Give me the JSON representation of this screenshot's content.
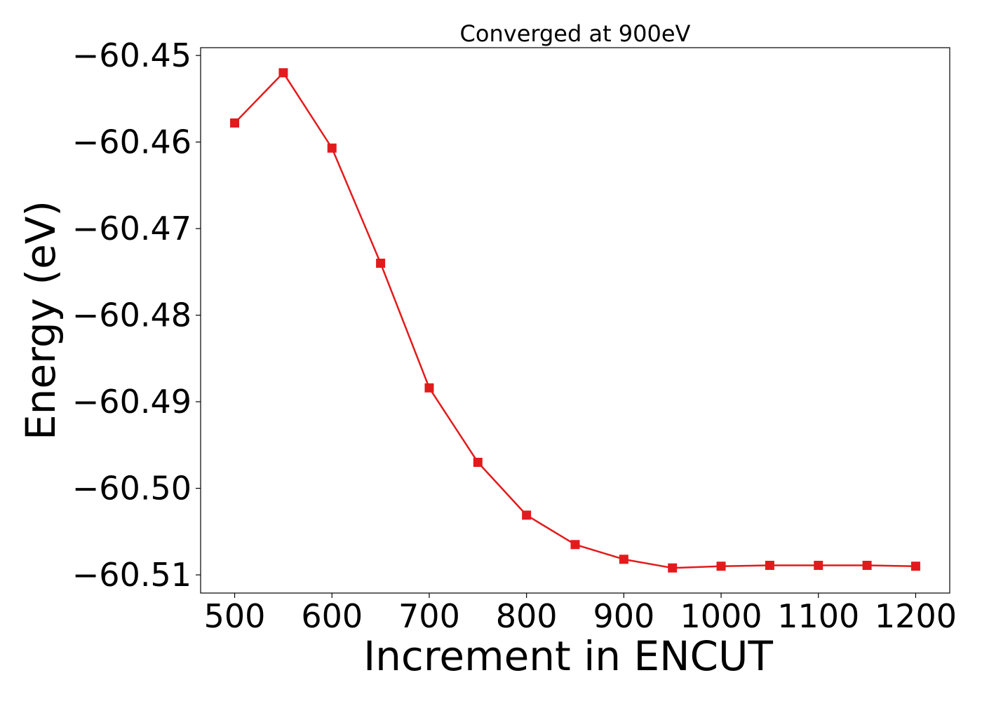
{
  "chart_data": {
    "type": "line",
    "title": "Converged at 900eV",
    "xlabel": "Increment in ENCUT",
    "ylabel": "Energy (eV)",
    "x": [
      500,
      550,
      600,
      650,
      700,
      750,
      800,
      850,
      900,
      950,
      1000,
      1050,
      1100,
      1150,
      1200
    ],
    "series": [
      {
        "values": [
          -60.4578,
          -60.452,
          -60.4607,
          -60.474,
          -60.4884,
          -60.497,
          -60.5031,
          -60.5065,
          -60.5082,
          -60.5092,
          -60.509,
          -60.5089,
          -60.5089,
          -60.5089,
          -60.509
        ],
        "color": "#e31a1c",
        "marker": "square"
      }
    ],
    "xticks": [
      500,
      600,
      700,
      800,
      900,
      1000,
      1100,
      1200
    ],
    "xtick_labels": [
      "500",
      "600",
      "700",
      "800",
      "900",
      "1000",
      "1100",
      "1200"
    ],
    "yticks": [
      -60.45,
      -60.46,
      -60.47,
      -60.48,
      -60.49,
      -60.5,
      -60.51
    ],
    "ytick_labels": [
      "−60.45",
      "−60.46",
      "−60.47",
      "−60.48",
      "−60.49",
      "−60.50",
      "−60.51"
    ],
    "xlim": [
      465,
      1235
    ],
    "ylim": [
      -60.5121,
      -60.4491
    ],
    "grid": false
  }
}
